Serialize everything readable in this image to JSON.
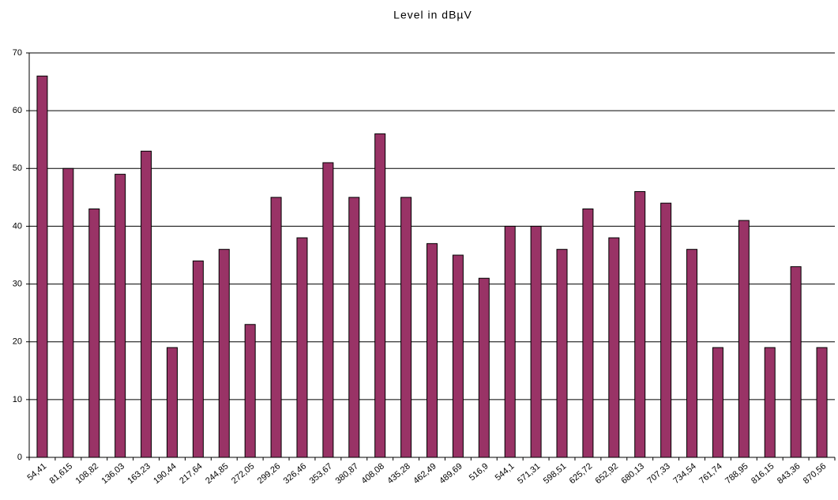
{
  "chart_data": {
    "type": "bar",
    "title": "Level in dBµV",
    "categories": [
      "54,41",
      "81,615",
      "108,82",
      "136,03",
      "163,23",
      "190,44",
      "217,64",
      "244,85",
      "272,05",
      "299,26",
      "326,46",
      "353,67",
      "380,87",
      "408,08",
      "435,28",
      "462,49",
      "489,69",
      "516,9",
      "544,1",
      "571,31",
      "598,51",
      "625,72",
      "652,92",
      "680,13",
      "707,33",
      "734,54",
      "761,74",
      "788,95",
      "816,15",
      "843,36",
      "870,56"
    ],
    "values": [
      66,
      50,
      43,
      49,
      53,
      19,
      34,
      36,
      23,
      45,
      38,
      51,
      45,
      56,
      45,
      37,
      35,
      31,
      40,
      40,
      36,
      43,
      38,
      46,
      44,
      36,
      19,
      41,
      19,
      33,
      19
    ],
    "color": "#993366",
    "ylim": [
      0,
      70
    ],
    "yticks": [
      0,
      10,
      20,
      30,
      40,
      50,
      60,
      70
    ],
    "grid": true
  }
}
